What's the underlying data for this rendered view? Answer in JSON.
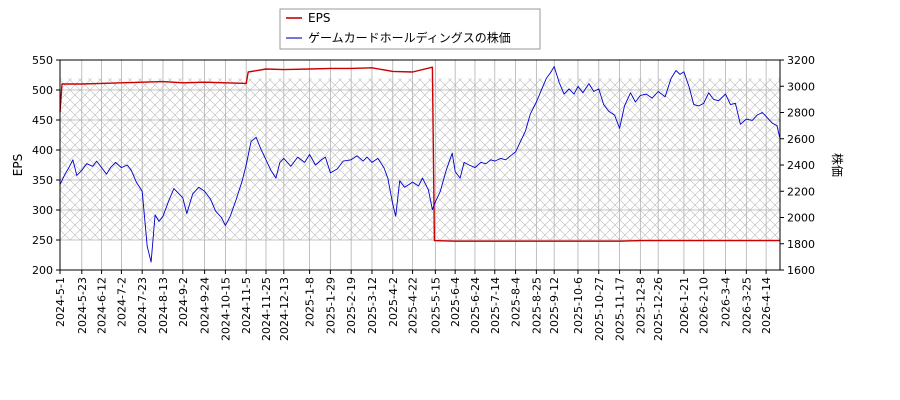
{
  "chart_data": {
    "type": "line",
    "ylabel_left": "EPS",
    "ylabel_right": "株価",
    "ylim_left": [
      200,
      550
    ],
    "ylim_right": [
      1600,
      3200
    ],
    "yticks_left": [
      200,
      250,
      300,
      350,
      400,
      450,
      500,
      550
    ],
    "yticks_right": [
      1600,
      1800,
      2000,
      2200,
      2400,
      2600,
      2800,
      3000,
      3200
    ],
    "x_tick_labels": [
      "2024-5-1",
      "2024-5-23",
      "2024-6-12",
      "2024-7-2",
      "2024-7-23",
      "2024-8-13",
      "2024-9-2",
      "2024-9-24",
      "2024-10-15",
      "2024-11-5",
      "2024-11-25",
      "2024-12-13",
      "2025-1-8",
      "2025-1-29",
      "2025-2-19",
      "2025-3-12",
      "2025-4-2",
      "2025-4-22",
      "2025-5-15",
      "2025-6-4",
      "2025-6-24",
      "2025-7-14",
      "2025-8-4",
      "2025-8-25",
      "2025-9-12",
      "2025-10-6",
      "2025-10-27",
      "2025-11-17",
      "2025-12-8",
      "2025-12-26",
      "2026-1-21",
      "2026-2-10",
      "2026-3-4",
      "2026-3-25",
      "2026-4-14"
    ],
    "grid": true,
    "legend_position": "top-center",
    "series": [
      {
        "name": "EPS",
        "axis": "left",
        "color": "#cc0000",
        "points": [
          [
            "2024-5-1",
            463
          ],
          [
            "2024-5-3",
            510
          ],
          [
            "2024-5-23",
            510
          ],
          [
            "2024-6-12",
            511
          ],
          [
            "2024-7-2",
            512
          ],
          [
            "2024-7-23",
            513
          ],
          [
            "2024-8-13",
            514
          ],
          [
            "2024-9-2",
            512
          ],
          [
            "2024-9-24",
            513
          ],
          [
            "2024-10-15",
            512
          ],
          [
            "2024-11-5",
            511
          ],
          [
            "2024-11-7",
            530
          ],
          [
            "2024-11-25",
            535
          ],
          [
            "2024-12-13",
            534
          ],
          [
            "2025-1-8",
            535
          ],
          [
            "2025-1-29",
            536
          ],
          [
            "2025-2-19",
            536
          ],
          [
            "2025-3-12",
            537
          ],
          [
            "2025-4-2",
            531
          ],
          [
            "2025-4-22",
            530
          ],
          [
            "2025-5-12",
            538
          ],
          [
            "2025-5-14",
            249
          ],
          [
            "2025-6-4",
            248
          ],
          [
            "2025-6-24",
            248
          ],
          [
            "2025-7-14",
            248
          ],
          [
            "2025-8-4",
            248
          ],
          [
            "2025-8-25",
            248
          ],
          [
            "2025-9-12",
            248
          ],
          [
            "2025-10-6",
            248
          ],
          [
            "2025-10-27",
            248
          ],
          [
            "2025-11-17",
            248
          ],
          [
            "2025-12-8",
            249
          ],
          [
            "2025-12-26",
            249
          ],
          [
            "2026-1-21",
            249
          ],
          [
            "2026-2-10",
            249
          ],
          [
            "2026-3-4",
            249
          ],
          [
            "2026-3-25",
            249
          ],
          [
            "2026-4-14",
            249
          ],
          [
            "2026-4-28",
            249
          ]
        ]
      },
      {
        "name": "ゲームカードホールディングスの株価",
        "axis": "right",
        "color": "#0000cc",
        "points": [
          [
            "2024-5-1",
            2250
          ],
          [
            "2024-5-6",
            2330
          ],
          [
            "2024-5-10",
            2380
          ],
          [
            "2024-5-14",
            2440
          ],
          [
            "2024-5-18",
            2320
          ],
          [
            "2024-5-23",
            2360
          ],
          [
            "2024-5-28",
            2410
          ],
          [
            "2024-6-3",
            2390
          ],
          [
            "2024-6-7",
            2430
          ],
          [
            "2024-6-12",
            2380
          ],
          [
            "2024-6-17",
            2330
          ],
          [
            "2024-6-21",
            2380
          ],
          [
            "2024-6-26",
            2420
          ],
          [
            "2024-7-2",
            2380
          ],
          [
            "2024-7-8",
            2400
          ],
          [
            "2024-7-12",
            2360
          ],
          [
            "2024-7-17",
            2270
          ],
          [
            "2024-7-23",
            2200
          ],
          [
            "2024-7-28",
            1780
          ],
          [
            "2024-8-1",
            1660
          ],
          [
            "2024-8-5",
            2020
          ],
          [
            "2024-8-9",
            1970
          ],
          [
            "2024-8-13",
            2010
          ],
          [
            "2024-8-19",
            2130
          ],
          [
            "2024-8-24",
            2220
          ],
          [
            "2024-9-2",
            2150
          ],
          [
            "2024-9-6",
            2030
          ],
          [
            "2024-9-12",
            2180
          ],
          [
            "2024-9-18",
            2230
          ],
          [
            "2024-9-24",
            2200
          ],
          [
            "2024-9-30",
            2140
          ],
          [
            "2024-10-5",
            2050
          ],
          [
            "2024-10-11",
            2000
          ],
          [
            "2024-10-15",
            1940
          ],
          [
            "2024-10-20",
            2010
          ],
          [
            "2024-10-26",
            2140
          ],
          [
            "2024-11-1",
            2280
          ],
          [
            "2024-11-5",
            2400
          ],
          [
            "2024-11-10",
            2580
          ],
          [
            "2024-11-15",
            2610
          ],
          [
            "2024-11-20",
            2520
          ],
          [
            "2024-11-25",
            2440
          ],
          [
            "2024-11-30",
            2360
          ],
          [
            "2024-12-5",
            2300
          ],
          [
            "2024-12-9",
            2420
          ],
          [
            "2024-12-13",
            2450
          ],
          [
            "2024-12-20",
            2390
          ],
          [
            "2024-12-27",
            2460
          ],
          [
            "2025-1-3",
            2420
          ],
          [
            "2025-1-8",
            2480
          ],
          [
            "2025-1-14",
            2400
          ],
          [
            "2025-1-20",
            2440
          ],
          [
            "2025-1-24",
            2460
          ],
          [
            "2025-1-29",
            2340
          ],
          [
            "2025-2-5",
            2370
          ],
          [
            "2025-2-11",
            2430
          ],
          [
            "2025-2-19",
            2440
          ],
          [
            "2025-2-25",
            2470
          ],
          [
            "2025-3-3",
            2430
          ],
          [
            "2025-3-7",
            2460
          ],
          [
            "2025-3-12",
            2420
          ],
          [
            "2025-3-18",
            2450
          ],
          [
            "2025-3-24",
            2380
          ],
          [
            "2025-3-28",
            2300
          ],
          [
            "2025-4-2",
            2100
          ],
          [
            "2025-4-5",
            2010
          ],
          [
            "2025-4-9",
            2280
          ],
          [
            "2025-4-14",
            2230
          ],
          [
            "2025-4-18",
            2250
          ],
          [
            "2025-4-22",
            2270
          ],
          [
            "2025-4-28",
            2240
          ],
          [
            "2025-5-2",
            2300
          ],
          [
            "2025-5-8",
            2210
          ],
          [
            "2025-5-12",
            2060
          ],
          [
            "2025-5-15",
            2120
          ],
          [
            "2025-5-20",
            2200
          ],
          [
            "2025-5-26",
            2360
          ],
          [
            "2025-6-1",
            2490
          ],
          [
            "2025-6-4",
            2350
          ],
          [
            "2025-6-9",
            2300
          ],
          [
            "2025-6-13",
            2420
          ],
          [
            "2025-6-18",
            2400
          ],
          [
            "2025-6-24",
            2380
          ],
          [
            "2025-6-30",
            2420
          ],
          [
            "2025-7-5",
            2410
          ],
          [
            "2025-7-10",
            2440
          ],
          [
            "2025-7-14",
            2430
          ],
          [
            "2025-7-20",
            2450
          ],
          [
            "2025-7-25",
            2440
          ],
          [
            "2025-7-30",
            2470
          ],
          [
            "2025-8-4",
            2500
          ],
          [
            "2025-8-9",
            2580
          ],
          [
            "2025-8-14",
            2660
          ],
          [
            "2025-8-19",
            2790
          ],
          [
            "2025-8-25",
            2880
          ],
          [
            "2025-8-30",
            2970
          ],
          [
            "2025-9-4",
            3060
          ],
          [
            "2025-9-8",
            3100
          ],
          [
            "2025-9-12",
            3150
          ],
          [
            "2025-9-17",
            3030
          ],
          [
            "2025-9-22",
            2940
          ],
          [
            "2025-9-27",
            2980
          ],
          [
            "2025-10-2",
            2940
          ],
          [
            "2025-10-6",
            3000
          ],
          [
            "2025-10-11",
            2950
          ],
          [
            "2025-10-17",
            3020
          ],
          [
            "2025-10-22",
            2960
          ],
          [
            "2025-10-27",
            2980
          ],
          [
            "2025-11-1",
            2860
          ],
          [
            "2025-11-6",
            2810
          ],
          [
            "2025-11-12",
            2780
          ],
          [
            "2025-11-17",
            2680
          ],
          [
            "2025-11-22",
            2850
          ],
          [
            "2025-11-28",
            2950
          ],
          [
            "2025-12-3",
            2880
          ],
          [
            "2025-12-8",
            2930
          ],
          [
            "2025-12-14",
            2940
          ],
          [
            "2025-12-20",
            2910
          ],
          [
            "2025-12-26",
            2960
          ],
          [
            "2026-1-2",
            2920
          ],
          [
            "2026-1-8",
            3060
          ],
          [
            "2026-1-13",
            3120
          ],
          [
            "2026-1-17",
            3090
          ],
          [
            "2026-1-21",
            3110
          ],
          [
            "2026-1-26",
            3000
          ],
          [
            "2026-1-31",
            2860
          ],
          [
            "2026-2-5",
            2850
          ],
          [
            "2026-2-10",
            2870
          ],
          [
            "2026-2-15",
            2950
          ],
          [
            "2026-2-20",
            2900
          ],
          [
            "2026-2-25",
            2890
          ],
          [
            "2026-3-4",
            2940
          ],
          [
            "2026-3-9",
            2860
          ],
          [
            "2026-3-14",
            2870
          ],
          [
            "2026-3-19",
            2710
          ],
          [
            "2026-3-25",
            2750
          ],
          [
            "2026-3-31",
            2740
          ],
          [
            "2026-4-5",
            2780
          ],
          [
            "2026-4-10",
            2800
          ],
          [
            "2026-4-14",
            2770
          ],
          [
            "2026-4-20",
            2720
          ],
          [
            "2026-4-25",
            2700
          ],
          [
            "2026-4-28",
            2600
          ]
        ]
      }
    ]
  }
}
